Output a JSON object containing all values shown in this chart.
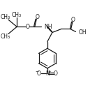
{
  "bg_color": "#ffffff",
  "line_color": "#1a1a1a",
  "lw": 0.9,
  "fs": 5.5,
  "fig_w": 1.39,
  "fig_h": 1.59,
  "dpi": 100,
  "xlim": [
    0,
    13.5
  ],
  "ylim": [
    0,
    15.5
  ]
}
